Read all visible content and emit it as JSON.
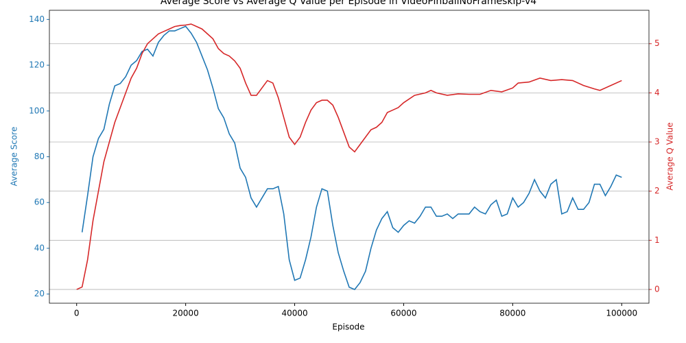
{
  "chart_data": {
    "type": "line",
    "title": "Average Score vs Average Q Value per Episode in VideoPinballNoFrameskip-v4",
    "xlabel": "Episode",
    "ylabel": "Average Score",
    "y2label": "Average Q Value",
    "xlim": [
      -5000,
      105000
    ],
    "xticks": [
      0,
      20000,
      40000,
      60000,
      80000,
      100000
    ],
    "ylim": [
      16,
      144
    ],
    "yticks": [
      20,
      40,
      60,
      80,
      100,
      120,
      140
    ],
    "y2lim": [
      -0.28,
      5.68
    ],
    "y2ticks": [
      0,
      1,
      2,
      3,
      4,
      5
    ],
    "grid": "y2",
    "series": [
      {
        "name": "Average Score",
        "color": "#1f77b4",
        "axis": "y",
        "x": [
          1000,
          2000,
          3000,
          4000,
          5000,
          6000,
          7000,
          8000,
          9000,
          10000,
          11000,
          12000,
          13000,
          14000,
          15000,
          16000,
          17000,
          18000,
          19000,
          20000,
          21000,
          22000,
          23000,
          24000,
          25000,
          26000,
          27000,
          28000,
          29000,
          30000,
          31000,
          32000,
          33000,
          34000,
          35000,
          36000,
          37000,
          38000,
          39000,
          40000,
          41000,
          42000,
          43000,
          44000,
          45000,
          46000,
          47000,
          48000,
          49000,
          50000,
          51000,
          52000,
          53000,
          54000,
          55000,
          56000,
          57000,
          58000,
          59000,
          60000,
          61000,
          62000,
          63000,
          64000,
          65000,
          66000,
          67000,
          68000,
          69000,
          70000,
          71000,
          72000,
          73000,
          74000,
          75000,
          76000,
          77000,
          78000,
          79000,
          80000,
          81000,
          82000,
          83000,
          84000,
          85000,
          86000,
          87000,
          88000,
          89000,
          90000,
          91000,
          92000,
          93000,
          94000,
          95000,
          96000,
          97000,
          98000,
          99000,
          100000
        ],
        "values": [
          47,
          63,
          80,
          88,
          92,
          103,
          111,
          112,
          115,
          120,
          122,
          126,
          127,
          124,
          130,
          133,
          135,
          135,
          136,
          137,
          134,
          130,
          124,
          118,
          110,
          101,
          97,
          90,
          86,
          75,
          71,
          62,
          58,
          62,
          66,
          66,
          67,
          55,
          35,
          26,
          27,
          35,
          45,
          58,
          66,
          65,
          50,
          38,
          30,
          23,
          22,
          25,
          30,
          40,
          48,
          53,
          56,
          49,
          47,
          50,
          52,
          51,
          54,
          58,
          58,
          54,
          54,
          55,
          53,
          55,
          55,
          55,
          58,
          56,
          55,
          59,
          61,
          54,
          55,
          62,
          58,
          60,
          64,
          70,
          65,
          62,
          68,
          70,
          55,
          56,
          62,
          57,
          57,
          60,
          68,
          68,
          63,
          67,
          72,
          71
        ]
      },
      {
        "name": "Average Q Value",
        "color": "#d62728",
        "axis": "y2",
        "x": [
          0,
          1000,
          2000,
          3000,
          4000,
          5000,
          6000,
          7000,
          8000,
          9000,
          10000,
          11000,
          12000,
          13000,
          14000,
          15000,
          16000,
          17000,
          18000,
          19000,
          20000,
          21000,
          22000,
          23000,
          24000,
          25000,
          26000,
          27000,
          28000,
          29000,
          30000,
          31000,
          32000,
          33000,
          34000,
          35000,
          36000,
          37000,
          38000,
          39000,
          40000,
          41000,
          42000,
          43000,
          44000,
          45000,
          46000,
          47000,
          48000,
          49000,
          50000,
          51000,
          52000,
          53000,
          54000,
          55000,
          56000,
          57000,
          58000,
          59000,
          60000,
          62000,
          64000,
          65000,
          66000,
          68000,
          70000,
          72000,
          74000,
          76000,
          78000,
          80000,
          81000,
          83000,
          85000,
          87000,
          89000,
          91000,
          93000,
          95000,
          96000,
          98000,
          100000
        ],
        "values": [
          0,
          0.05,
          0.6,
          1.4,
          2.0,
          2.6,
          3.0,
          3.4,
          3.7,
          4.0,
          4.3,
          4.5,
          4.8,
          5.0,
          5.1,
          5.2,
          5.25,
          5.3,
          5.35,
          5.37,
          5.38,
          5.4,
          5.35,
          5.3,
          5.2,
          5.1,
          4.9,
          4.8,
          4.75,
          4.65,
          4.5,
          4.2,
          3.95,
          3.95,
          4.1,
          4.25,
          4.2,
          3.9,
          3.5,
          3.1,
          2.95,
          3.1,
          3.4,
          3.65,
          3.8,
          3.85,
          3.85,
          3.75,
          3.5,
          3.2,
          2.9,
          2.8,
          2.95,
          3.1,
          3.25,
          3.3,
          3.4,
          3.6,
          3.65,
          3.7,
          3.8,
          3.95,
          4.0,
          4.05,
          4.0,
          3.95,
          3.98,
          3.97,
          3.97,
          4.05,
          4.02,
          4.1,
          4.2,
          4.22,
          4.3,
          4.25,
          4.27,
          4.25,
          4.15,
          4.08,
          4.05,
          4.15,
          4.25
        ]
      }
    ]
  }
}
